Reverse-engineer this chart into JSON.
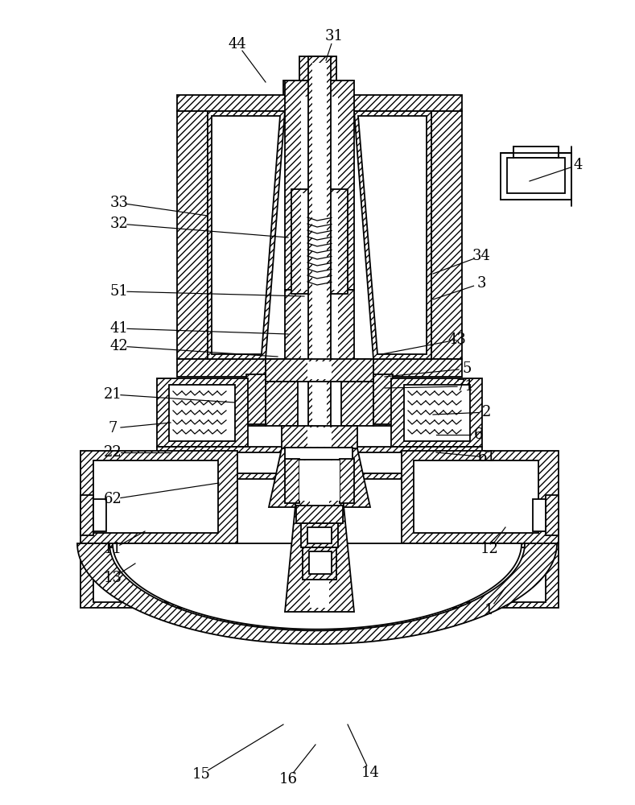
{
  "bg_color": "#ffffff",
  "line_color": "#000000",
  "figsize": [
    7.89,
    10.0
  ],
  "dpi": 100,
  "labels": [
    [
      "44",
      295,
      55
    ],
    [
      "31",
      415,
      45
    ],
    [
      "4",
      718,
      205
    ],
    [
      "33",
      148,
      252
    ],
    [
      "32",
      148,
      278
    ],
    [
      "34",
      598,
      318
    ],
    [
      "3",
      598,
      352
    ],
    [
      "51",
      148,
      362
    ],
    [
      "41",
      148,
      408
    ],
    [
      "42",
      148,
      430
    ],
    [
      "43",
      568,
      422
    ],
    [
      "5",
      580,
      458
    ],
    [
      "21",
      140,
      490
    ],
    [
      "71",
      578,
      480
    ],
    [
      "2",
      605,
      512
    ],
    [
      "7",
      140,
      532
    ],
    [
      "6",
      595,
      540
    ],
    [
      "22",
      140,
      562
    ],
    [
      "61",
      605,
      568
    ],
    [
      "62",
      140,
      620
    ],
    [
      "11",
      140,
      682
    ],
    [
      "13",
      140,
      718
    ],
    [
      "12",
      608,
      682
    ],
    [
      "1",
      608,
      758
    ],
    [
      "15",
      250,
      962
    ],
    [
      "16",
      358,
      968
    ],
    [
      "14",
      460,
      960
    ]
  ],
  "leader_lines": [
    [
      "44",
      295,
      55,
      330,
      102
    ],
    [
      "31",
      415,
      45,
      405,
      75
    ],
    [
      "4",
      718,
      205,
      658,
      225
    ],
    [
      "33",
      148,
      252,
      258,
      268
    ],
    [
      "32",
      148,
      278,
      358,
      295
    ],
    [
      "34",
      598,
      318,
      538,
      340
    ],
    [
      "3",
      598,
      352,
      538,
      372
    ],
    [
      "51",
      148,
      362,
      378,
      368
    ],
    [
      "41",
      148,
      408,
      358,
      415
    ],
    [
      "42",
      148,
      430,
      345,
      443
    ],
    [
      "43",
      568,
      422,
      474,
      440
    ],
    [
      "5",
      580,
      458,
      478,
      468
    ],
    [
      "21",
      140,
      490,
      292,
      500
    ],
    [
      "71",
      578,
      480,
      478,
      482
    ],
    [
      "2",
      605,
      512,
      538,
      515
    ],
    [
      "7",
      140,
      532,
      212,
      525
    ],
    [
      "6",
      595,
      540,
      542,
      540
    ],
    [
      "22",
      140,
      562,
      212,
      562
    ],
    [
      "61",
      605,
      568,
      542,
      562
    ],
    [
      "62",
      140,
      620,
      272,
      600
    ],
    [
      "11",
      140,
      682,
      180,
      660
    ],
    [
      "13",
      140,
      718,
      168,
      700
    ],
    [
      "12",
      608,
      682,
      628,
      655
    ],
    [
      "1",
      608,
      758,
      628,
      730
    ],
    [
      "15",
      250,
      962,
      352,
      900
    ],
    [
      "16",
      358,
      968,
      392,
      925
    ],
    [
      "14",
      460,
      960,
      432,
      900
    ]
  ]
}
